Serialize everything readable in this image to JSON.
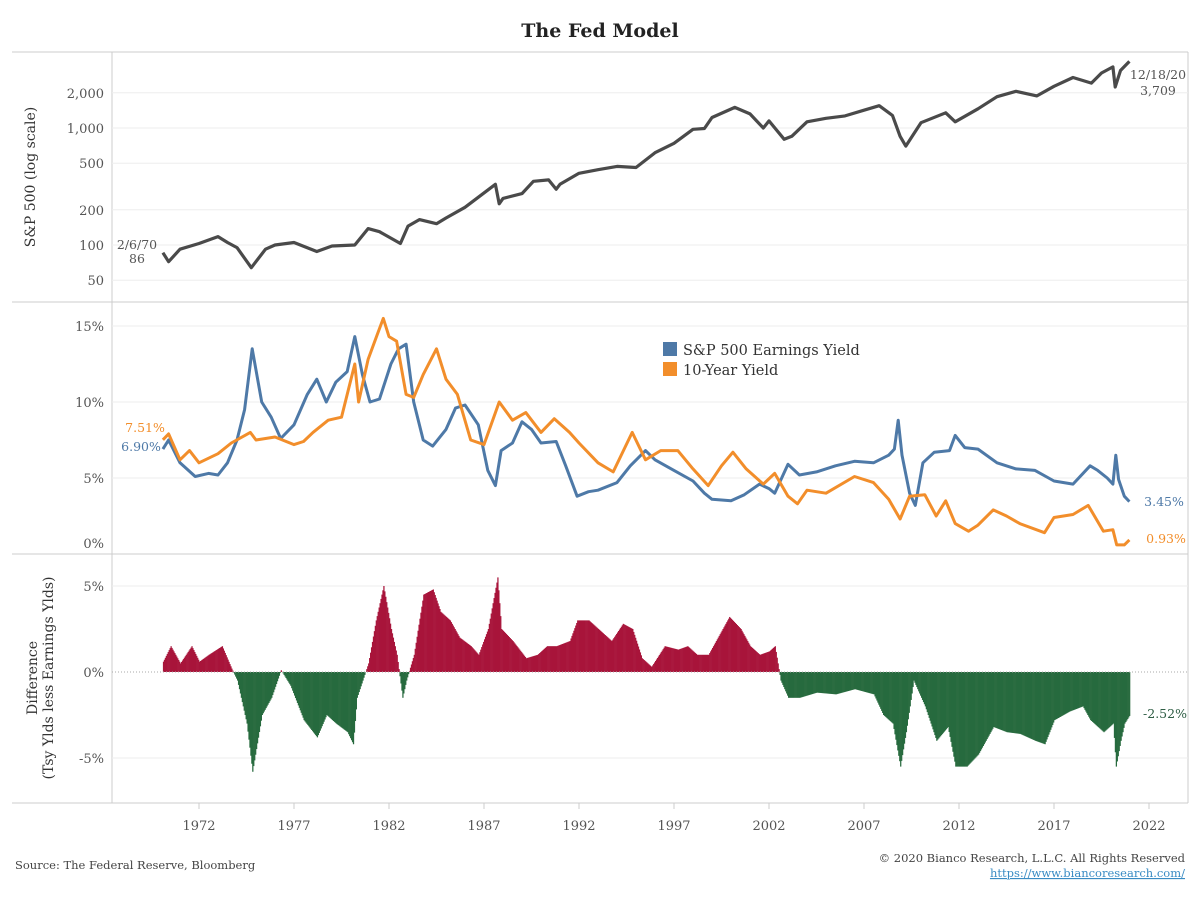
{
  "chart_data": [
    {
      "type": "line",
      "title": "The Fed Model",
      "ylabel": "S&P 500 (log scale)",
      "yscale": "log",
      "ylim": [
        40,
        4200
      ],
      "xlim": [
        1967.5,
        2023.5
      ],
      "yticks": [
        "50",
        "100",
        "200",
        "500",
        "1,000",
        "2,000"
      ],
      "ytick_values": [
        50,
        100,
        200,
        500,
        1000,
        2000
      ],
      "grid": true,
      "color": "#4a4a4a",
      "annotations": {
        "start_date": "2/6/70",
        "start_value": "86",
        "end_date": "12/18/20",
        "end_value": "3,709"
      },
      "series": [
        {
          "x": [
            1970.1,
            1970.4,
            1971,
            1972,
            1973,
            1973.5,
            1974,
            1974.75,
            1975.5,
            1976,
            1977,
            1978.2,
            1979,
            1980.2,
            1980.9,
            1981.5,
            1982.6,
            1983,
            1983.6,
            1984.5,
            1985,
            1986,
            1987.6,
            1987.8,
            1988,
            1989,
            1989.6,
            1990.4,
            1990.8,
            1991,
            1992,
            1993,
            1994,
            1995,
            1996,
            1997,
            1998,
            1998.6,
            1999,
            2000.2,
            2001,
            2001.7,
            2002,
            2002.8,
            2003.2,
            2004,
            2005,
            2006,
            2007,
            2007.8,
            2008.5,
            2008.9,
            2009.2,
            2010,
            2011.3,
            2011.8,
            2013,
            2014,
            2015,
            2016.1,
            2017,
            2018,
            2018.97,
            2019.5,
            2020.1,
            2020.22,
            2020.5,
            2020.97
          ],
          "y": [
            86,
            72,
            92,
            103,
            118,
            105,
            95,
            64,
            92,
            100,
            105,
            88,
            98,
            100,
            138,
            130,
            103,
            145,
            165,
            152,
            170,
            210,
            330,
            225,
            250,
            275,
            350,
            360,
            300,
            330,
            410,
            440,
            470,
            460,
            615,
            740,
            975,
            990,
            1230,
            1500,
            1320,
            1000,
            1150,
            800,
            850,
            1130,
            1210,
            1270,
            1420,
            1550,
            1280,
            850,
            700,
            1110,
            1350,
            1130,
            1460,
            1850,
            2060,
            1880,
            2270,
            2700,
            2420,
            2950,
            3330,
            2240,
            3100,
            3709
          ]
        }
      ]
    },
    {
      "type": "line",
      "ylim": [
        0,
        16
      ],
      "yticks": [
        "0%",
        "5%",
        "10%",
        "15%"
      ],
      "ytick_values": [
        0,
        5,
        10,
        15
      ],
      "grid": true,
      "legend": "top-center",
      "series": [
        {
          "name": "S&P 500  Earnings Yield",
          "color": "#4e79a7",
          "start_label": "6.90%",
          "end_label": "3.45%",
          "x": [
            1970.1,
            1970.4,
            1971,
            1971.8,
            1972.5,
            1973,
            1973.5,
            1974,
            1974.4,
            1974.8,
            1975.3,
            1975.8,
            1976.3,
            1977,
            1977.7,
            1978.2,
            1978.7,
            1979.2,
            1979.8,
            1980.2,
            1980.6,
            1981,
            1981.5,
            1982.1,
            1982.5,
            1982.9,
            1983.3,
            1983.8,
            1984.3,
            1985,
            1985.5,
            1986,
            1986.7,
            1987.2,
            1987.6,
            1987.9,
            1988.5,
            1989,
            1989.5,
            1990,
            1990.8,
            1991.3,
            1991.9,
            1992.5,
            1993,
            1994,
            1994.7,
            1995.5,
            1996,
            1997,
            1998,
            1998.6,
            1999,
            2000,
            2000.7,
            2001.5,
            2002,
            2002.3,
            2003,
            2003.6,
            2004.5,
            2005.5,
            2006.5,
            2007.5,
            2008.3,
            2008.6,
            2008.8,
            2009,
            2009.4,
            2009.7,
            2010.1,
            2010.7,
            2011.5,
            2011.8,
            2012.3,
            2013,
            2014,
            2015,
            2016,
            2017,
            2018,
            2018.9,
            2019.3,
            2019.8,
            2020.1,
            2020.25,
            2020.4,
            2020.7,
            2020.97
          ],
          "y": [
            6.9,
            7.5,
            6.0,
            5.1,
            5.3,
            5.2,
            6.0,
            7.5,
            9.5,
            13.5,
            10.0,
            9.0,
            7.6,
            8.5,
            10.5,
            11.5,
            10.0,
            11.3,
            12.0,
            14.3,
            11.8,
            10.0,
            10.2,
            12.5,
            13.5,
            13.8,
            10.0,
            7.5,
            7.1,
            8.2,
            9.6,
            9.8,
            8.5,
            5.5,
            4.5,
            6.8,
            7.3,
            8.7,
            8.2,
            7.3,
            7.4,
            5.8,
            3.8,
            4.1,
            4.2,
            4.7,
            5.8,
            6.8,
            6.2,
            5.5,
            4.8,
            4.0,
            3.6,
            3.5,
            3.9,
            4.6,
            4.3,
            4.0,
            5.9,
            5.2,
            5.4,
            5.8,
            6.1,
            6.0,
            6.5,
            6.9,
            8.8,
            6.5,
            4.0,
            3.2,
            6.0,
            6.7,
            6.8,
            7.8,
            7.0,
            6.9,
            6.0,
            5.6,
            5.5,
            4.8,
            4.6,
            5.8,
            5.5,
            5.0,
            4.6,
            6.5,
            4.9,
            3.8,
            3.45
          ]
        },
        {
          "name": "10-Year Yield",
          "color": "#f28e2b",
          "start_label": "7.51%",
          "end_label": "0.93%",
          "x": [
            1970.1,
            1970.4,
            1971,
            1971.5,
            1972,
            1973,
            1973.7,
            1974.7,
            1975,
            1976,
            1977,
            1977.5,
            1978,
            1978.8,
            1979.5,
            1980.2,
            1980.4,
            1980.9,
            1981.4,
            1981.7,
            1982,
            1982.4,
            1982.9,
            1983.3,
            1983.8,
            1984.5,
            1985,
            1985.6,
            1986.3,
            1987,
            1987.8,
            1988.5,
            1989.2,
            1990,
            1990.7,
            1991.5,
            1992,
            1993,
            1993.8,
            1994.8,
            1995.5,
            1996.3,
            1997.2,
            1998,
            1998.8,
            1999.5,
            2000.1,
            2000.8,
            2001.7,
            2002.3,
            2003,
            2003.5,
            2004,
            2005,
            2006.5,
            2007.5,
            2008.3,
            2008.9,
            2009.4,
            2010.2,
            2010.8,
            2011.3,
            2011.8,
            2012.5,
            2013,
            2013.8,
            2014.5,
            2015.2,
            2016.5,
            2017,
            2018,
            2018.8,
            2019.6,
            2020.1,
            2020.3,
            2020.7,
            2020.97
          ],
          "y": [
            7.51,
            7.9,
            6.2,
            6.8,
            6.0,
            6.6,
            7.3,
            8.0,
            7.5,
            7.7,
            7.2,
            7.4,
            8.0,
            8.8,
            9.0,
            12.5,
            10.0,
            12.8,
            14.5,
            15.5,
            14.3,
            14.0,
            10.5,
            10.3,
            11.8,
            13.5,
            11.5,
            10.5,
            7.5,
            7.2,
            10.0,
            8.8,
            9.3,
            8.0,
            8.9,
            8.0,
            7.3,
            6.0,
            5.4,
            8.0,
            6.2,
            6.8,
            6.8,
            5.6,
            4.5,
            5.8,
            6.7,
            5.6,
            4.6,
            5.3,
            3.8,
            3.3,
            4.2,
            4.0,
            5.1,
            4.7,
            3.6,
            2.3,
            3.8,
            3.9,
            2.5,
            3.5,
            2.0,
            1.5,
            1.9,
            2.9,
            2.5,
            2.0,
            1.4,
            2.4,
            2.6,
            3.2,
            1.5,
            1.6,
            0.6,
            0.6,
            0.93
          ]
        }
      ]
    },
    {
      "type": "bar",
      "ylabel": [
        "Difference",
        "(Tsy Ylds less Earnings Ylds)"
      ],
      "ylim": [
        -7.5,
        7
      ],
      "yticks": [
        "-5%",
        "0%",
        "5%"
      ],
      "ytick_values": [
        -5,
        0,
        5
      ],
      "xticks": [
        "1972",
        "1977",
        "1982",
        "1987",
        "1992",
        "1997",
        "2002",
        "2007",
        "2012",
        "2017",
        "2022"
      ],
      "grid": true,
      "positive_color": "#a8153b",
      "negative_color": "#276a3e",
      "end_label": "-2.52%",
      "series": [
        {
          "x": [
            1970.1,
            1970.5,
            1971,
            1971.6,
            1972,
            1972.5,
            1973.2,
            1973.7,
            1974,
            1974.5,
            1974.8,
            1975.3,
            1975.8,
            1976.3,
            1976.8,
            1977.5,
            1978.2,
            1978.7,
            1979.2,
            1979.8,
            1980.1,
            1980.3,
            1980.6,
            1980.9,
            1981.3,
            1981.7,
            1982.1,
            1982.4,
            1982.7,
            1982.9,
            1983.3,
            1983.8,
            1984.3,
            1984.7,
            1985.2,
            1985.7,
            1986.3,
            1986.7,
            1987.2,
            1987.7,
            1987.9,
            1988.5,
            1989.2,
            1989.8,
            1990.3,
            1990.8,
            1991.5,
            1991.9,
            1992.5,
            1993,
            1993.7,
            1994.3,
            1994.8,
            1995.3,
            1995.8,
            1996.5,
            1997.2,
            1997.7,
            1998.2,
            1998.8,
            1999.3,
            1999.9,
            2000.5,
            2001,
            2001.5,
            2002,
            2002.3,
            2002.6,
            2003,
            2003.6,
            2004.5,
            2005.5,
            2006.5,
            2007.5,
            2008,
            2008.5,
            2008.9,
            2009.2,
            2009.6,
            2010.2,
            2010.8,
            2011.4,
            2011.8,
            2012.4,
            2013,
            2013.8,
            2014.5,
            2015.2,
            2016,
            2016.5,
            2017,
            2017.8,
            2018.5,
            2018.9,
            2019.6,
            2020.1,
            2020.25,
            2020.5,
            2020.7,
            2020.97
          ],
          "y": [
            0.6,
            1.5,
            0.5,
            1.5,
            0.6,
            1.0,
            1.5,
            0.2,
            -0.5,
            -3.0,
            -5.8,
            -2.5,
            -1.5,
            0.1,
            -0.8,
            -2.8,
            -3.8,
            -2.5,
            -3.0,
            -3.5,
            -4.2,
            -1.5,
            -0.5,
            0.5,
            3.0,
            5.0,
            2.5,
            1.0,
            -1.5,
            -0.5,
            1.0,
            4.5,
            4.8,
            3.5,
            3.0,
            2.0,
            1.5,
            1.0,
            2.5,
            5.5,
            2.5,
            1.8,
            0.8,
            1.0,
            1.5,
            1.5,
            1.8,
            3.0,
            3.0,
            2.5,
            1.8,
            2.8,
            2.5,
            0.8,
            0.3,
            1.5,
            1.3,
            1.5,
            1.0,
            1.0,
            2.0,
            3.2,
            2.5,
            1.5,
            1.0,
            1.2,
            1.5,
            -0.5,
            -1.5,
            -1.5,
            -1.2,
            -1.3,
            -1.0,
            -1.3,
            -2.5,
            -3.0,
            -5.5,
            -3.5,
            -0.5,
            -2.0,
            -4.0,
            -3.2,
            -5.5,
            -5.5,
            -4.8,
            -3.2,
            -3.5,
            -3.6,
            -4.0,
            -4.2,
            -2.8,
            -2.3,
            -2.0,
            -2.8,
            -3.5,
            -3.0,
            -5.5,
            -4.0,
            -3.0,
            -2.52
          ]
        }
      ]
    }
  ],
  "footer": {
    "source": "Source: The Federal Reserve, Bloomberg",
    "copyright": "© 2020 Bianco Research, L.L.C. All Rights Reserved",
    "url": "https://www.biancoresearch.com/"
  }
}
